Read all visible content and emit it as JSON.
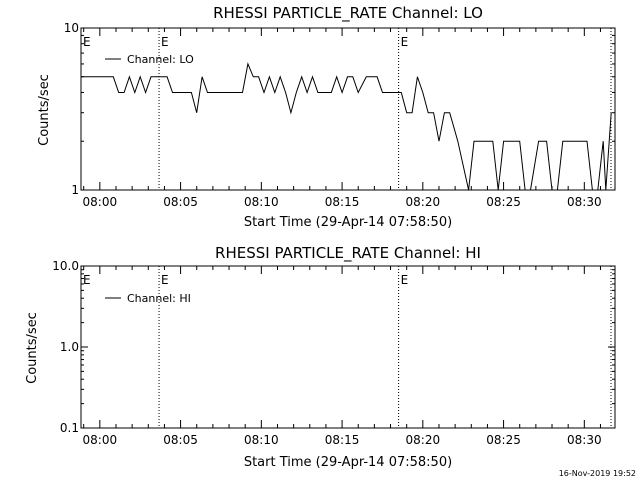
{
  "colors": {
    "background": "#ffffff",
    "foreground": "#000000"
  },
  "footer": {
    "timestamp": "16-Nov-2019 19:52"
  },
  "chart_data": [
    {
      "type": "line",
      "title": "RHESSI PARTICLE_RATE Channel: LO",
      "xlabel": "Start Time (29-Apr-14 07:58:50)",
      "ylabel": "Counts/sec",
      "yscale": "log",
      "ylim": [
        1,
        10
      ],
      "xlim": [
        "07:58:50",
        "08:31:54"
      ],
      "yticks": [
        {
          "value": 1,
          "label": "1"
        },
        {
          "value": 10,
          "label": "10"
        }
      ],
      "xticks": [
        "08:00",
        "08:05",
        "08:10",
        "08:15",
        "08:20",
        "08:25",
        "08:30"
      ],
      "event_markers": [
        {
          "time": "08:03:40",
          "label": "E"
        },
        {
          "time": "08:18:30",
          "label": "E"
        }
      ],
      "edge_label": "E",
      "legend_position": "top-left",
      "series": [
        {
          "name": "Channel: LO",
          "points": [
            [
              "07:58:50",
              5
            ],
            [
              "08:00:50",
              5
            ],
            [
              "08:01:10",
              4
            ],
            [
              "08:01:30",
              4
            ],
            [
              "08:01:50",
              5
            ],
            [
              "08:02:10",
              4
            ],
            [
              "08:02:30",
              5
            ],
            [
              "08:02:50",
              4
            ],
            [
              "08:03:10",
              5
            ],
            [
              "08:03:40",
              5
            ],
            [
              "08:04:10",
              5
            ],
            [
              "08:04:30",
              4
            ],
            [
              "08:05:40",
              4
            ],
            [
              "08:06:00",
              3
            ],
            [
              "08:06:20",
              5
            ],
            [
              "08:06:40",
              4
            ],
            [
              "08:07:30",
              4
            ],
            [
              "08:07:50",
              4
            ],
            [
              "08:08:30",
              4
            ],
            [
              "08:08:50",
              4
            ],
            [
              "08:09:10",
              6
            ],
            [
              "08:09:30",
              5
            ],
            [
              "08:09:50",
              5
            ],
            [
              "08:10:10",
              4
            ],
            [
              "08:10:30",
              5
            ],
            [
              "08:10:50",
              4
            ],
            [
              "08:11:10",
              5
            ],
            [
              "08:11:30",
              4
            ],
            [
              "08:11:50",
              3
            ],
            [
              "08:12:10",
              4
            ],
            [
              "08:12:30",
              5
            ],
            [
              "08:12:50",
              4
            ],
            [
              "08:13:10",
              5
            ],
            [
              "08:13:30",
              4
            ],
            [
              "08:14:20",
              4
            ],
            [
              "08:14:40",
              5
            ],
            [
              "08:15:00",
              4
            ],
            [
              "08:15:20",
              5
            ],
            [
              "08:15:40",
              5
            ],
            [
              "08:16:00",
              4
            ],
            [
              "08:16:30",
              5
            ],
            [
              "08:17:10",
              5
            ],
            [
              "08:17:30",
              4
            ],
            [
              "08:18:20",
              4
            ],
            [
              "08:18:40",
              4
            ],
            [
              "08:19:00",
              3
            ],
            [
              "08:19:20",
              3
            ],
            [
              "08:19:40",
              5
            ],
            [
              "08:20:00",
              4
            ],
            [
              "08:20:20",
              3
            ],
            [
              "08:20:40",
              3
            ],
            [
              "08:21:00",
              2
            ],
            [
              "08:21:20",
              3
            ],
            [
              "08:21:40",
              3
            ],
            [
              "08:22:10",
              2
            ],
            [
              "08:22:50",
              1
            ],
            [
              "08:23:10",
              2
            ],
            [
              "08:24:20",
              2
            ],
            [
              "08:24:40",
              1
            ],
            [
              "08:25:00",
              2
            ],
            [
              "08:26:00",
              2
            ],
            [
              "08:26:20",
              1
            ],
            [
              "08:26:40",
              1
            ],
            [
              "08:27:10",
              2
            ],
            [
              "08:27:40",
              2
            ],
            [
              "08:28:00",
              1
            ],
            [
              "08:28:20",
              1
            ],
            [
              "08:28:40",
              2
            ],
            [
              "08:30:10",
              2
            ],
            [
              "08:30:30",
              1
            ],
            [
              "08:30:50",
              1
            ],
            [
              "08:31:10",
              2
            ],
            [
              "08:31:20",
              1
            ],
            [
              "08:31:40",
              3
            ]
          ]
        }
      ]
    },
    {
      "type": "line",
      "title": "RHESSI PARTICLE_RATE Channel: HI",
      "xlabel": "Start Time (29-Apr-14 07:58:50)",
      "ylabel": "Counts/sec",
      "yscale": "log",
      "ylim": [
        0.1,
        10
      ],
      "xlim": [
        "07:58:50",
        "08:31:54"
      ],
      "yticks": [
        {
          "value": 0.1,
          "label": "0.1"
        },
        {
          "value": 1,
          "label": "1.0"
        },
        {
          "value": 10,
          "label": "10.0"
        }
      ],
      "xticks": [
        "08:00",
        "08:05",
        "08:10",
        "08:15",
        "08:20",
        "08:25",
        "08:30"
      ],
      "event_markers": [
        {
          "time": "08:03:40",
          "label": "E"
        },
        {
          "time": "08:18:30",
          "label": "E"
        }
      ],
      "edge_label": "E",
      "legend_position": "top-left",
      "series": [
        {
          "name": "Channel: HI",
          "points": []
        }
      ]
    }
  ]
}
